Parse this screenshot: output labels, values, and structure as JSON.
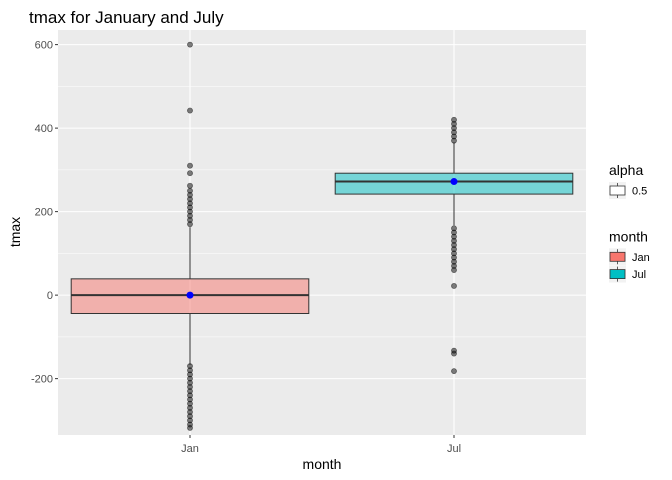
{
  "chart_data": {
    "type": "boxplot",
    "title": "tmax for January and July",
    "xlabel": "month",
    "ylabel": "tmax",
    "categories": [
      "Jan",
      "Jul"
    ],
    "ylim": [
      -335,
      635
    ],
    "yticks": [
      -200,
      0,
      200,
      400,
      600
    ],
    "ytick_labels": [
      "-200",
      "0",
      "200",
      "400",
      "600"
    ],
    "grid": true,
    "background": "#EBEBEB",
    "boxes": [
      {
        "category": "Jan",
        "color": "#F8766D",
        "q1": -44,
        "median": 0,
        "q3": 39,
        "whisker_low": -167,
        "whisker_high": 163,
        "mean": 0,
        "outliers_high": [
          170,
          180,
          190,
          200,
          210,
          220,
          230,
          240,
          250,
          262,
          292,
          310,
          442,
          600
        ],
        "outliers_low": [
          -170,
          -180,
          -190,
          -200,
          -210,
          -220,
          -230,
          -240,
          -250,
          -260,
          -270,
          -280,
          -290,
          -300,
          -310,
          -318
        ]
      },
      {
        "category": "Jul",
        "color": "#00BFC4",
        "q1": 242,
        "median": 272,
        "q3": 292,
        "whisker_low": 167,
        "whisker_high": 366,
        "mean": 272,
        "outliers_high": [
          370,
          380,
          390,
          400,
          410,
          420
        ],
        "outliers_low": [
          160,
          150,
          140,
          130,
          120,
          110,
          100,
          90,
          80,
          70,
          60,
          22,
          -133,
          -140,
          -182
        ]
      }
    ],
    "mean_marker_color": "#0000FF",
    "legends": [
      {
        "title": "alpha",
        "entries": [
          {
            "label": "0.5",
            "fill": "#FFFFFF"
          }
        ]
      },
      {
        "title": "month",
        "entries": [
          {
            "label": "Jan",
            "fill": "#F8766D"
          },
          {
            "label": "Jul",
            "fill": "#00BFC4"
          }
        ]
      }
    ],
    "legend_position": "right"
  }
}
